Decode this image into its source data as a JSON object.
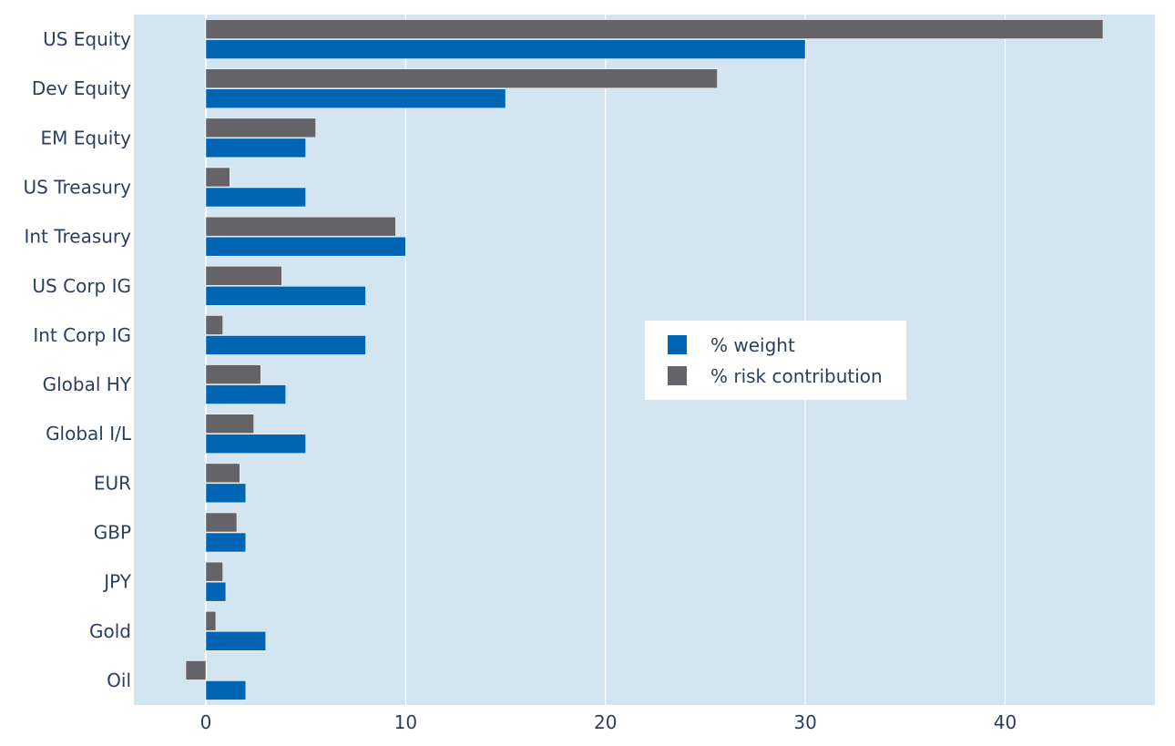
{
  "chart_data": {
    "type": "bar",
    "orientation": "horizontal",
    "title": "",
    "xlabel": "",
    "ylabel": "",
    "categories": [
      "US Equity",
      "Dev Equity",
      "EM Equity",
      "US Treasury",
      "Int Treasury",
      "US Corp IG",
      "Int Corp IG",
      "Global HY",
      "Global I/L",
      "EUR",
      "GBP",
      "JPY",
      "Gold",
      "Oil"
    ],
    "series": [
      {
        "name": "% weight",
        "color": "#0066b4",
        "values": [
          30,
          15,
          5,
          5,
          10,
          8,
          8,
          4,
          5,
          2,
          2,
          1,
          3,
          2
        ]
      },
      {
        "name": "% risk contribution",
        "color": "#646468",
        "values": [
          44.9,
          25.6,
          5.5,
          1.2,
          9.5,
          3.8,
          0.85,
          2.75,
          2.4,
          1.7,
          1.55,
          0.85,
          0.5,
          -1.0
        ]
      }
    ],
    "xlim": [
      -3.6,
      47.5
    ],
    "xticks": [
      0,
      10,
      20,
      30,
      40
    ],
    "grid": true,
    "legend_position": "center-right",
    "plot_background": "#d4e5f2"
  }
}
